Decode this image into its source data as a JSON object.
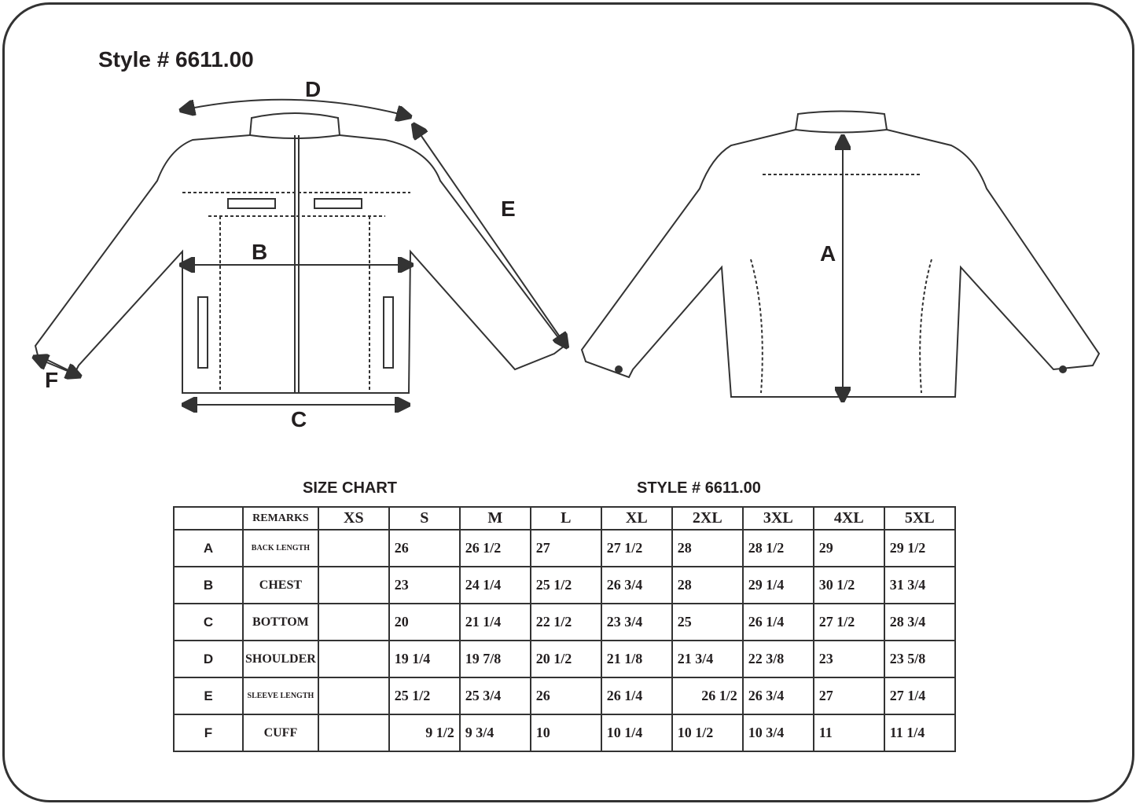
{
  "title": "Style # 6611.00",
  "diagram_labels": {
    "A": "A",
    "B": "B",
    "C": "C",
    "D": "D",
    "E": "E",
    "F": "F"
  },
  "size_chart": {
    "caption": "SIZE CHART",
    "style_caption": "STYLE #  6611.00",
    "remarks_header": "REMARKS",
    "sizes": [
      "XS",
      "S",
      "M",
      "L",
      "XL",
      "2XL",
      "3XL",
      "4XL",
      "5XL"
    ],
    "rows": [
      {
        "letter": "A",
        "remark": "BACK LENGTH",
        "values": [
          "",
          "26",
          "26 1/2",
          "27",
          "27 1/2",
          "28",
          "28 1/2",
          "29",
          "29 1/2"
        ]
      },
      {
        "letter": "B",
        "remark": "CHEST",
        "values": [
          "",
          "23",
          "24 1/4",
          "25 1/2",
          "26 3/4",
          "28",
          "29 1/4",
          "30 1/2",
          "31 3/4"
        ]
      },
      {
        "letter": "C",
        "remark": "BOTTOM",
        "values": [
          "",
          "20",
          "21 1/4",
          "22 1/2",
          "23 3/4",
          "25",
          "26 1/4",
          "27 1/2",
          "28 3/4"
        ]
      },
      {
        "letter": "D",
        "remark": "SHOULDER",
        "values": [
          "",
          "19 1/4",
          "19 7/8",
          "20 1/2",
          "21 1/8",
          "21 3/4",
          "22 3/8",
          "23",
          "23 5/8"
        ]
      },
      {
        "letter": "E",
        "remark": "SLEEVE LENGTH",
        "values": [
          "",
          "25 1/2",
          "25 3/4",
          "26",
          "26 1/4",
          "26 1/2",
          "26 3/4",
          "27",
          "27 1/4"
        ]
      },
      {
        "letter": "F",
        "remark": "CUFF",
        "values": [
          "",
          "9 1/2",
          "9 3/4",
          "10",
          "10 1/4",
          "10 1/2",
          "10 3/4",
          "11",
          "11 1/4"
        ]
      }
    ]
  }
}
